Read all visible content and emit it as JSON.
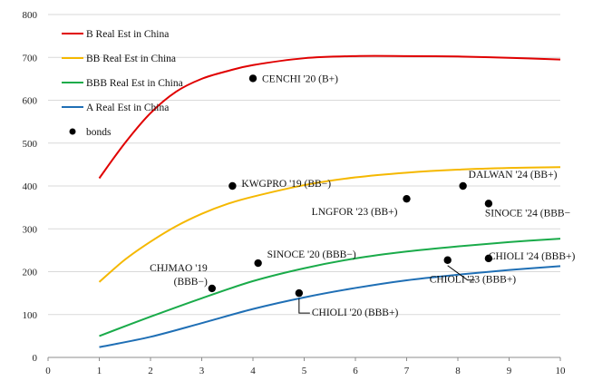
{
  "chart_data": {
    "type": "line",
    "title": "",
    "xlabel": "",
    "ylabel": "",
    "xlim": [
      0,
      10
    ],
    "ylim": [
      0,
      800
    ],
    "x_ticks": [
      0,
      1,
      2,
      3,
      4,
      5,
      6,
      7,
      8,
      9,
      10
    ],
    "y_ticks": [
      0,
      100,
      200,
      300,
      400,
      500,
      600,
      700,
      800
    ],
    "grid": "horizontal",
    "legend_position": "top-left",
    "series": [
      {
        "name": "B Real Est in China",
        "color": "#e00000",
        "x": [
          1,
          1.5,
          2,
          2.5,
          3,
          3.5,
          4,
          5,
          6,
          7,
          8,
          9,
          10
        ],
        "y": [
          418,
          500,
          570,
          620,
          650,
          668,
          682,
          698,
          703,
          703,
          702,
          699,
          695
        ]
      },
      {
        "name": "BB Real Est in China",
        "color": "#f5b800",
        "x": [
          1,
          1.5,
          2,
          2.5,
          3,
          3.5,
          4,
          5,
          6,
          7,
          8,
          9,
          10
        ],
        "y": [
          176,
          228,
          270,
          306,
          335,
          358,
          375,
          402,
          420,
          431,
          438,
          442,
          444
        ]
      },
      {
        "name": "BBB Real Est in China",
        "color": "#1aab4a",
        "x": [
          1,
          2,
          3,
          4,
          5,
          6,
          7,
          8,
          9,
          10
        ],
        "y": [
          50,
          95,
          138,
          178,
          208,
          231,
          247,
          259,
          269,
          277
        ]
      },
      {
        "name": "A Real Est in China",
        "color": "#1f6fb5",
        "x": [
          1,
          2,
          3,
          4,
          5,
          6,
          7,
          8,
          9,
          10
        ],
        "y": [
          24,
          48,
          80,
          113,
          140,
          162,
          180,
          193,
          204,
          213
        ]
      }
    ],
    "bonds": {
      "name": "bonds",
      "color": "#000000",
      "points": [
        {
          "label": "CENCHI '20 (B+)",
          "x": 4.0,
          "y": 651
        },
        {
          "label": "KWGPRO '19 (BB−)",
          "x": 3.6,
          "y": 400
        },
        {
          "label": "LNGFOR '23 (BB+)",
          "x": 7.0,
          "y": 370
        },
        {
          "label": "DALWAN '24 (BB+)",
          "x": 8.1,
          "y": 400
        },
        {
          "label": "SINOCE '24 (BBB−",
          "x": 8.6,
          "y": 359
        },
        {
          "label": "SINOCE '20 (BBB−)",
          "x": 4.1,
          "y": 220
        },
        {
          "label": "CHJMAO '19\n(BBB−)",
          "x": 3.2,
          "y": 161
        },
        {
          "label": "CHIOLI '20 (BBB+)",
          "x": 4.9,
          "y": 150
        },
        {
          "label": "CHIOLI '23 (BBB+)",
          "x": 7.8,
          "y": 227
        },
        {
          "label": "CHIOLI '24 (BBB+)",
          "x": 8.6,
          "y": 231
        }
      ]
    }
  }
}
